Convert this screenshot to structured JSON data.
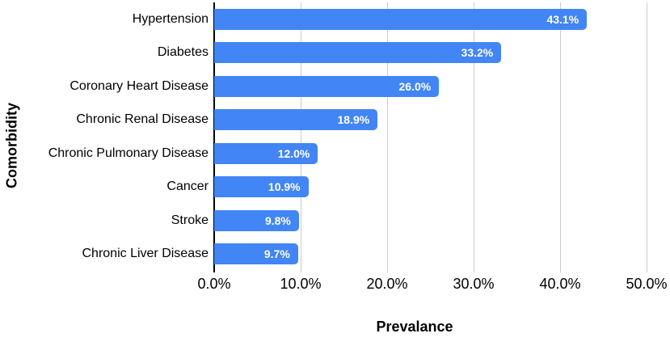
{
  "chart_data": {
    "type": "bar",
    "orientation": "horizontal",
    "title": "",
    "xlabel": "Prevalance",
    "ylabel": "Comorbidity",
    "categories": [
      "Hypertension",
      "Diabetes",
      "Coronary Heart Disease",
      "Chronic Renal Disease",
      "Chronic Pulmonary Disease",
      "Cancer",
      "Stroke",
      "Chronic Liver Disease"
    ],
    "values": [
      43.1,
      33.2,
      26.0,
      18.9,
      12.0,
      10.9,
      9.8,
      9.7
    ],
    "value_labels": [
      "43.1%",
      "33.2%",
      "26.0%",
      "18.9%",
      "12.0%",
      "10.9%",
      "9.8%",
      "9.7%"
    ],
    "xlim": [
      0,
      50
    ],
    "xticks": [
      0,
      10,
      20,
      30,
      40,
      50
    ],
    "xtick_labels": [
      "0.0%",
      "10.0%",
      "20.0%",
      "30.0%",
      "40.0%",
      "50.0%"
    ],
    "grid": "vertical-gridlines-on",
    "legend": "none",
    "colors": {
      "bar": "#4285F4",
      "gridline": "#cccccc",
      "axis_line": "#000000",
      "data_label": "#ffffff",
      "text": "#000000",
      "background": "#ffffff"
    }
  }
}
